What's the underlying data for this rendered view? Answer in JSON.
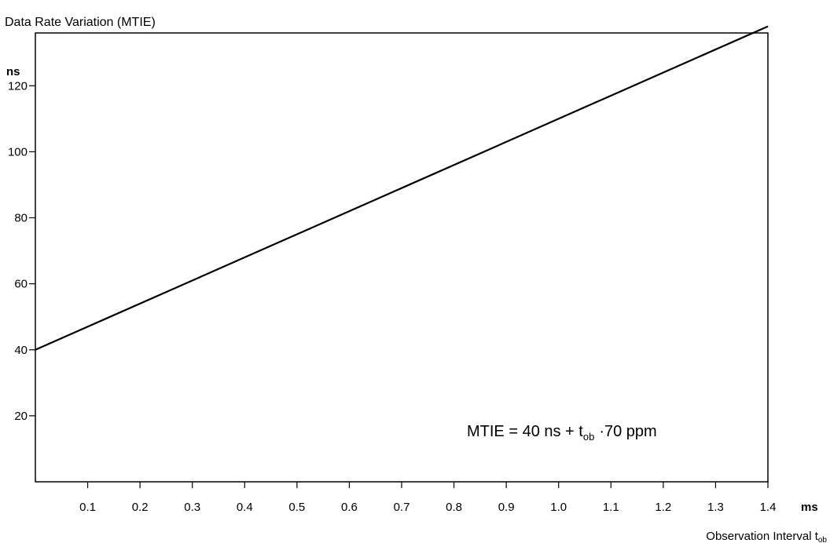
{
  "chart_data": {
    "type": "line",
    "title": "Data Rate Variation (MTIE)",
    "ylabel_unit": "ns",
    "xlabel_unit": "ms",
    "xlabel_main": "Observation Interval t",
    "xlabel_sub": "ob",
    "xlim": [
      0,
      1.4
    ],
    "ylim": [
      0,
      136
    ],
    "x_ticks": [
      0.1,
      0.2,
      0.3,
      0.4,
      0.5,
      0.6,
      0.7,
      0.8,
      0.9,
      1.0,
      1.1,
      1.2,
      1.3,
      1.4
    ],
    "x_tick_labels": [
      "0.1",
      "0.2",
      "0.3",
      "0.4",
      "0.5",
      "0.6",
      "0.7",
      "0.8",
      "0.9",
      "1.0",
      "1.1",
      "1.2",
      "1.3",
      "1.4"
    ],
    "y_ticks": [
      20,
      40,
      60,
      80,
      100,
      120
    ],
    "y_tick_labels": [
      "20",
      "40",
      "60",
      "80",
      "100",
      "120"
    ],
    "series": [
      {
        "x": [
          0,
          1.4
        ],
        "values": [
          40,
          138
        ]
      }
    ],
    "annotation": {
      "prefix": "MTIE = 40 ns + t",
      "sub": "ob",
      "suffix": "70 ppm"
    },
    "grid": false
  }
}
